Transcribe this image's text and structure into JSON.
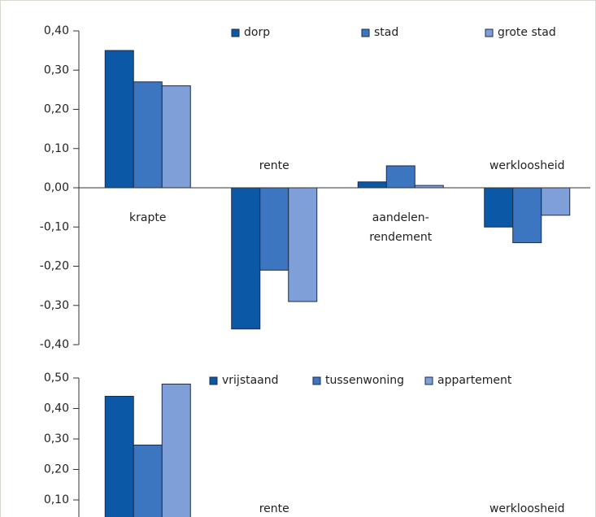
{
  "chart_data": [
    {
      "type": "bar",
      "categories": [
        "krapte",
        "rente",
        "aandelen-\nrendement",
        "werkloosheid"
      ],
      "series": [
        {
          "name": "dorp",
          "color": "#0b58a6",
          "values": [
            0.35,
            -0.36,
            0.015,
            -0.1
          ]
        },
        {
          "name": "stad",
          "color": "#3c76c0",
          "values": [
            0.27,
            -0.21,
            0.056,
            -0.14
          ]
        },
        {
          "name": "grote stad",
          "color": "#7e9fd8",
          "values": [
            0.26,
            -0.29,
            0.006,
            -0.07
          ]
        }
      ],
      "ylim": [
        -0.4,
        0.4
      ],
      "yticks": [
        {
          "value": 0.4,
          "label": "0,40"
        },
        {
          "value": 0.3,
          "label": "0,30"
        },
        {
          "value": 0.2,
          "label": "0,20"
        },
        {
          "value": 0.1,
          "label": "0,10"
        },
        {
          "value": 0,
          "label": "0,00"
        },
        {
          "value": -0.1,
          "label": "-0,10"
        },
        {
          "value": -0.2,
          "label": "-0,20"
        },
        {
          "value": -0.3,
          "label": "-0,30"
        },
        {
          "value": -0.4,
          "label": "-0,40"
        }
      ]
    },
    {
      "type": "bar",
      "categories": [
        null,
        "rente",
        null,
        "werkloosheid"
      ],
      "series": [
        {
          "name": "vrijstaand",
          "color": "#0b58a6",
          "values": [
            0.44,
            null,
            null,
            null
          ]
        },
        {
          "name": "tussenwoning",
          "color": "#3c76c0",
          "values": [
            0.28,
            null,
            null,
            null
          ]
        },
        {
          "name": "appartement",
          "color": "#7e9fd8",
          "values": [
            0.48,
            null,
            null,
            null
          ]
        }
      ],
      "ylim": [
        0.1,
        0.5
      ],
      "yticks": [
        {
          "value": 0.5,
          "label": "0,50"
        },
        {
          "value": 0.4,
          "label": "0,40"
        },
        {
          "value": 0.3,
          "label": "0,30"
        },
        {
          "value": 0.2,
          "label": "0,20"
        },
        {
          "value": 0.1,
          "label": "0,10"
        }
      ]
    }
  ]
}
